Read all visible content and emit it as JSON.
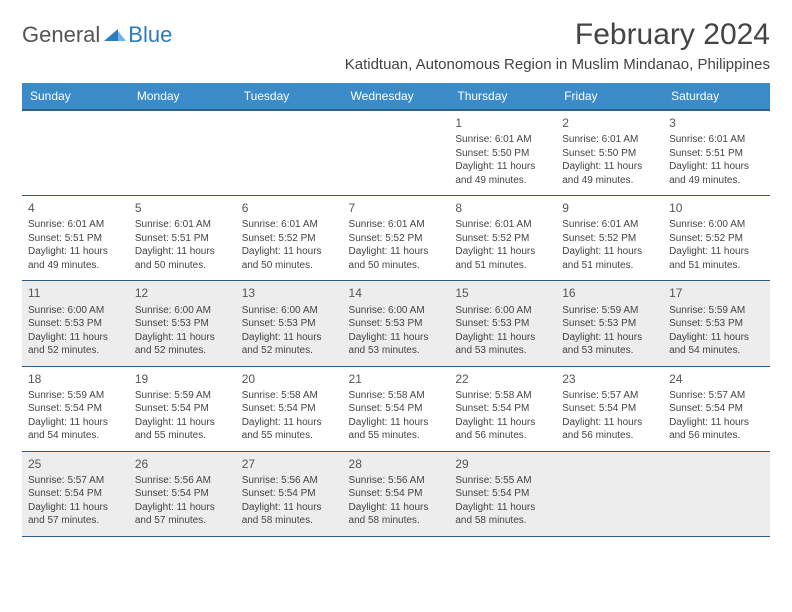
{
  "logo": {
    "text1": "General",
    "text2": "Blue"
  },
  "title": "February 2024",
  "location": "Katidtuan, Autonomous Region in Muslim Mindanao, Philippines",
  "day_headers": [
    "Sunday",
    "Monday",
    "Tuesday",
    "Wednesday",
    "Thursday",
    "Friday",
    "Saturday"
  ],
  "colors": {
    "header_bg": "#3b8bc9",
    "header_border": "#2b5f8a",
    "shaded_bg": "#ededed",
    "text": "#444444",
    "logo_blue": "#2b7bbf"
  },
  "fonts": {
    "title_size": 30,
    "location_size": 15,
    "header_size": 12,
    "daynum_size": 12,
    "cell_size": 10
  },
  "weeks": [
    {
      "shaded": false,
      "days": [
        null,
        null,
        null,
        null,
        {
          "num": "1",
          "sunrise": "Sunrise: 6:01 AM",
          "sunset": "Sunset: 5:50 PM",
          "daylight1": "Daylight: 11 hours",
          "daylight2": "and 49 minutes."
        },
        {
          "num": "2",
          "sunrise": "Sunrise: 6:01 AM",
          "sunset": "Sunset: 5:50 PM",
          "daylight1": "Daylight: 11 hours",
          "daylight2": "and 49 minutes."
        },
        {
          "num": "3",
          "sunrise": "Sunrise: 6:01 AM",
          "sunset": "Sunset: 5:51 PM",
          "daylight1": "Daylight: 11 hours",
          "daylight2": "and 49 minutes."
        }
      ]
    },
    {
      "shaded": false,
      "days": [
        {
          "num": "4",
          "sunrise": "Sunrise: 6:01 AM",
          "sunset": "Sunset: 5:51 PM",
          "daylight1": "Daylight: 11 hours",
          "daylight2": "and 49 minutes."
        },
        {
          "num": "5",
          "sunrise": "Sunrise: 6:01 AM",
          "sunset": "Sunset: 5:51 PM",
          "daylight1": "Daylight: 11 hours",
          "daylight2": "and 50 minutes."
        },
        {
          "num": "6",
          "sunrise": "Sunrise: 6:01 AM",
          "sunset": "Sunset: 5:52 PM",
          "daylight1": "Daylight: 11 hours",
          "daylight2": "and 50 minutes."
        },
        {
          "num": "7",
          "sunrise": "Sunrise: 6:01 AM",
          "sunset": "Sunset: 5:52 PM",
          "daylight1": "Daylight: 11 hours",
          "daylight2": "and 50 minutes."
        },
        {
          "num": "8",
          "sunrise": "Sunrise: 6:01 AM",
          "sunset": "Sunset: 5:52 PM",
          "daylight1": "Daylight: 11 hours",
          "daylight2": "and 51 minutes."
        },
        {
          "num": "9",
          "sunrise": "Sunrise: 6:01 AM",
          "sunset": "Sunset: 5:52 PM",
          "daylight1": "Daylight: 11 hours",
          "daylight2": "and 51 minutes."
        },
        {
          "num": "10",
          "sunrise": "Sunrise: 6:00 AM",
          "sunset": "Sunset: 5:52 PM",
          "daylight1": "Daylight: 11 hours",
          "daylight2": "and 51 minutes."
        }
      ]
    },
    {
      "shaded": true,
      "days": [
        {
          "num": "11",
          "sunrise": "Sunrise: 6:00 AM",
          "sunset": "Sunset: 5:53 PM",
          "daylight1": "Daylight: 11 hours",
          "daylight2": "and 52 minutes."
        },
        {
          "num": "12",
          "sunrise": "Sunrise: 6:00 AM",
          "sunset": "Sunset: 5:53 PM",
          "daylight1": "Daylight: 11 hours",
          "daylight2": "and 52 minutes."
        },
        {
          "num": "13",
          "sunrise": "Sunrise: 6:00 AM",
          "sunset": "Sunset: 5:53 PM",
          "daylight1": "Daylight: 11 hours",
          "daylight2": "and 52 minutes."
        },
        {
          "num": "14",
          "sunrise": "Sunrise: 6:00 AM",
          "sunset": "Sunset: 5:53 PM",
          "daylight1": "Daylight: 11 hours",
          "daylight2": "and 53 minutes."
        },
        {
          "num": "15",
          "sunrise": "Sunrise: 6:00 AM",
          "sunset": "Sunset: 5:53 PM",
          "daylight1": "Daylight: 11 hours",
          "daylight2": "and 53 minutes."
        },
        {
          "num": "16",
          "sunrise": "Sunrise: 5:59 AM",
          "sunset": "Sunset: 5:53 PM",
          "daylight1": "Daylight: 11 hours",
          "daylight2": "and 53 minutes."
        },
        {
          "num": "17",
          "sunrise": "Sunrise: 5:59 AM",
          "sunset": "Sunset: 5:53 PM",
          "daylight1": "Daylight: 11 hours",
          "daylight2": "and 54 minutes."
        }
      ]
    },
    {
      "shaded": false,
      "days": [
        {
          "num": "18",
          "sunrise": "Sunrise: 5:59 AM",
          "sunset": "Sunset: 5:54 PM",
          "daylight1": "Daylight: 11 hours",
          "daylight2": "and 54 minutes."
        },
        {
          "num": "19",
          "sunrise": "Sunrise: 5:59 AM",
          "sunset": "Sunset: 5:54 PM",
          "daylight1": "Daylight: 11 hours",
          "daylight2": "and 55 minutes."
        },
        {
          "num": "20",
          "sunrise": "Sunrise: 5:58 AM",
          "sunset": "Sunset: 5:54 PM",
          "daylight1": "Daylight: 11 hours",
          "daylight2": "and 55 minutes."
        },
        {
          "num": "21",
          "sunrise": "Sunrise: 5:58 AM",
          "sunset": "Sunset: 5:54 PM",
          "daylight1": "Daylight: 11 hours",
          "daylight2": "and 55 minutes."
        },
        {
          "num": "22",
          "sunrise": "Sunrise: 5:58 AM",
          "sunset": "Sunset: 5:54 PM",
          "daylight1": "Daylight: 11 hours",
          "daylight2": "and 56 minutes."
        },
        {
          "num": "23",
          "sunrise": "Sunrise: 5:57 AM",
          "sunset": "Sunset: 5:54 PM",
          "daylight1": "Daylight: 11 hours",
          "daylight2": "and 56 minutes."
        },
        {
          "num": "24",
          "sunrise": "Sunrise: 5:57 AM",
          "sunset": "Sunset: 5:54 PM",
          "daylight1": "Daylight: 11 hours",
          "daylight2": "and 56 minutes."
        }
      ]
    },
    {
      "shaded": true,
      "days": [
        {
          "num": "25",
          "sunrise": "Sunrise: 5:57 AM",
          "sunset": "Sunset: 5:54 PM",
          "daylight1": "Daylight: 11 hours",
          "daylight2": "and 57 minutes."
        },
        {
          "num": "26",
          "sunrise": "Sunrise: 5:56 AM",
          "sunset": "Sunset: 5:54 PM",
          "daylight1": "Daylight: 11 hours",
          "daylight2": "and 57 minutes."
        },
        {
          "num": "27",
          "sunrise": "Sunrise: 5:56 AM",
          "sunset": "Sunset: 5:54 PM",
          "daylight1": "Daylight: 11 hours",
          "daylight2": "and 58 minutes."
        },
        {
          "num": "28",
          "sunrise": "Sunrise: 5:56 AM",
          "sunset": "Sunset: 5:54 PM",
          "daylight1": "Daylight: 11 hours",
          "daylight2": "and 58 minutes."
        },
        {
          "num": "29",
          "sunrise": "Sunrise: 5:55 AM",
          "sunset": "Sunset: 5:54 PM",
          "daylight1": "Daylight: 11 hours",
          "daylight2": "and 58 minutes."
        },
        null,
        null
      ]
    }
  ]
}
